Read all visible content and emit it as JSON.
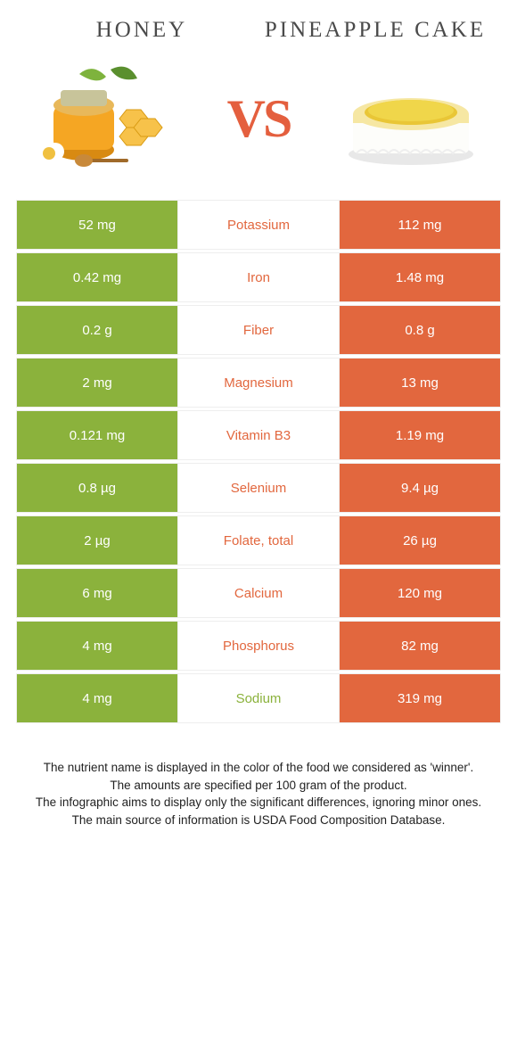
{
  "header": {
    "left": "HONEY",
    "right": "PINEAPPLE CAKE",
    "vs": "VS"
  },
  "colors": {
    "left_col": "#8bb23c",
    "right_col": "#e2673e",
    "mid_green": "#8bb23c",
    "mid_orange": "#e2673e"
  },
  "rows": [
    {
      "label": "Potassium",
      "left": "52 mg",
      "right": "112 mg",
      "winner": "right"
    },
    {
      "label": "Iron",
      "left": "0.42 mg",
      "right": "1.48 mg",
      "winner": "right"
    },
    {
      "label": "Fiber",
      "left": "0.2 g",
      "right": "0.8 g",
      "winner": "right"
    },
    {
      "label": "Magnesium",
      "left": "2 mg",
      "right": "13 mg",
      "winner": "right"
    },
    {
      "label": "Vitamin B3",
      "left": "0.121 mg",
      "right": "1.19 mg",
      "winner": "right"
    },
    {
      "label": "Selenium",
      "left": "0.8 µg",
      "right": "9.4 µg",
      "winner": "right"
    },
    {
      "label": "Folate, total",
      "left": "2 µg",
      "right": "26 µg",
      "winner": "right"
    },
    {
      "label": "Calcium",
      "left": "6 mg",
      "right": "120 mg",
      "winner": "right"
    },
    {
      "label": "Phosphorus",
      "left": "4 mg",
      "right": "82 mg",
      "winner": "right"
    },
    {
      "label": "Sodium",
      "left": "4 mg",
      "right": "319 mg",
      "winner": "left"
    }
  ],
  "footer": {
    "l1": "The nutrient name is displayed in the color of the food we considered as 'winner'.",
    "l2": "The amounts are specified per 100 gram of the product.",
    "l3": "The infographic aims to display only the significant differences, ignoring minor ones.",
    "l4": "The main source of information is USDA Food Composition Database."
  }
}
